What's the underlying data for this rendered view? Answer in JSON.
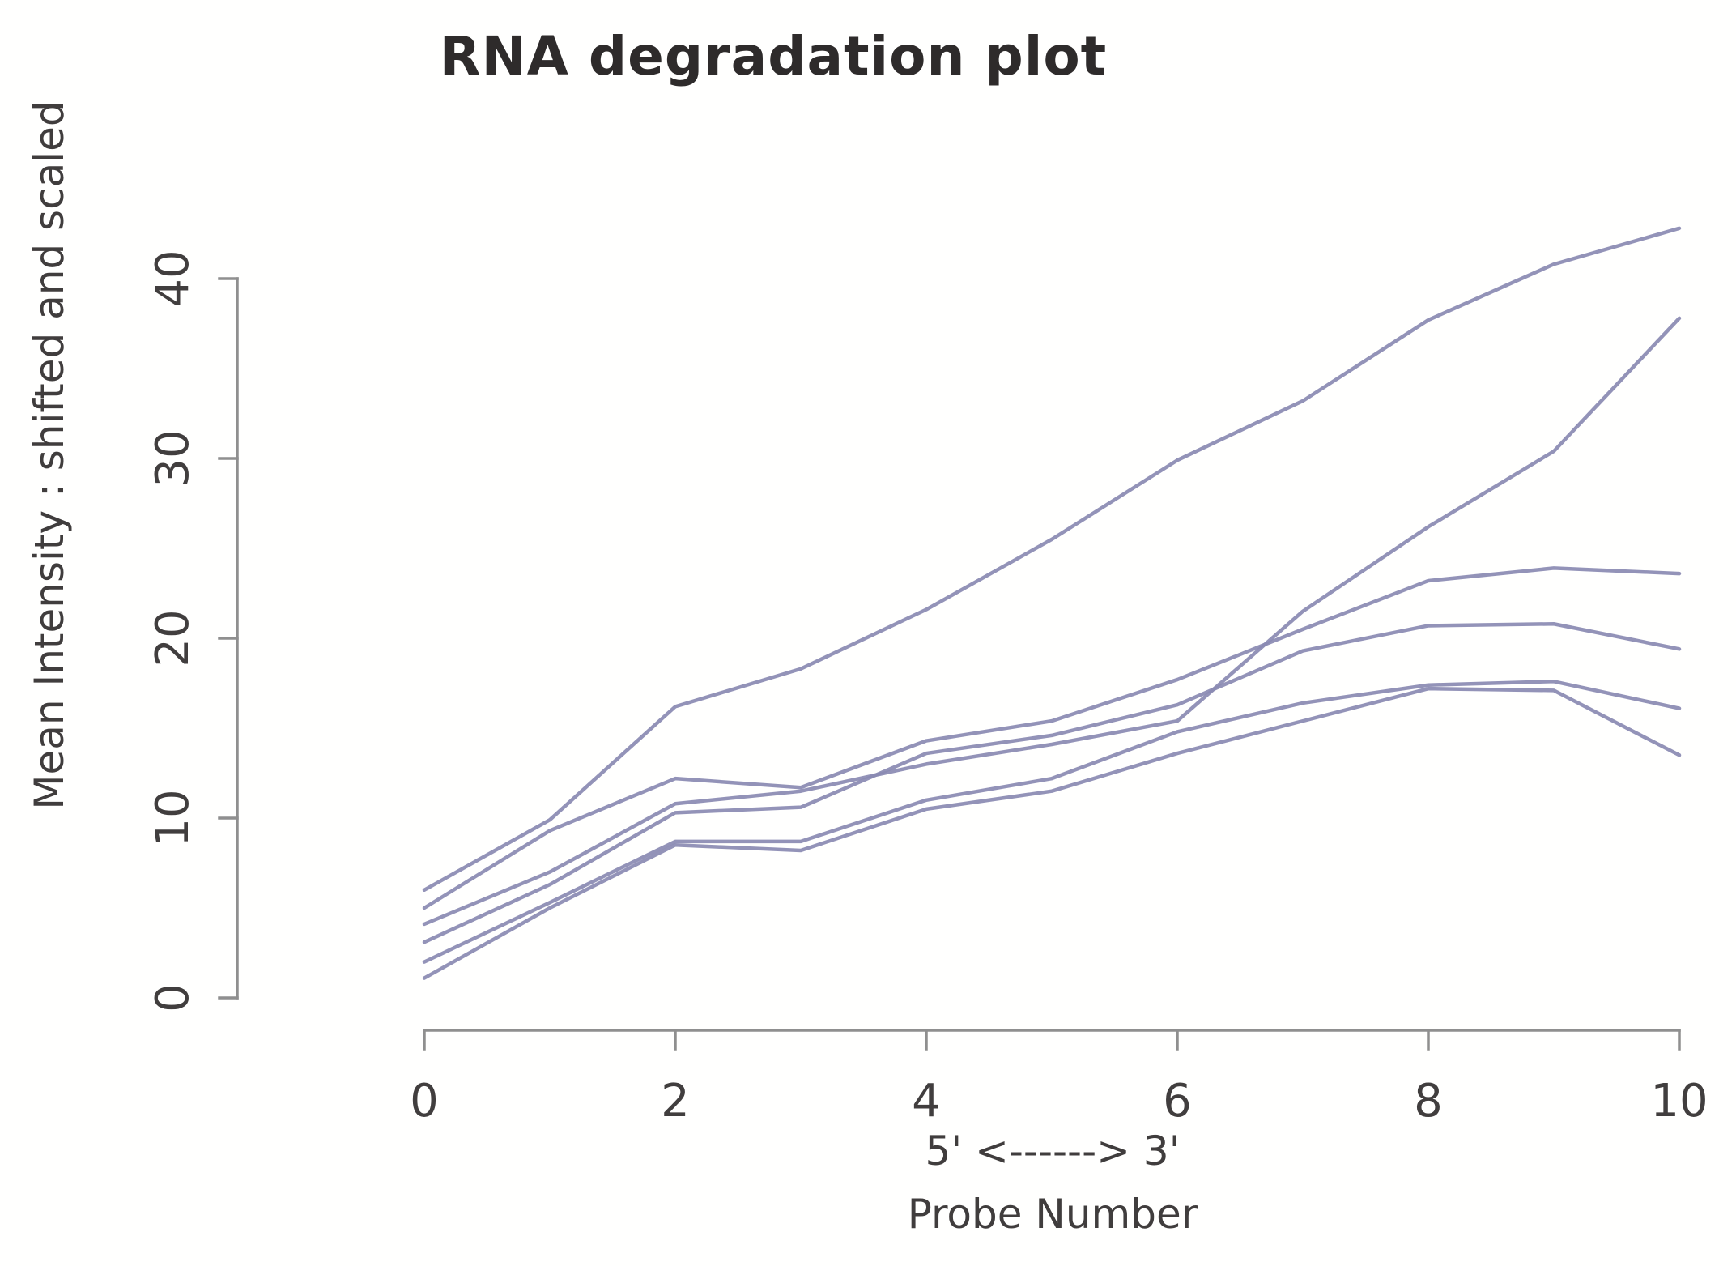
{
  "chart_data": {
    "type": "line",
    "title": "RNA degradation plot",
    "ylabel": "Mean Intensity : shifted and scaled",
    "xlabel_direction": "5' <------> 3'",
    "xlabel": "Probe Number",
    "xlim": [
      0,
      10
    ],
    "ylim": [
      0,
      40
    ],
    "x_ticks": [
      0,
      2,
      4,
      6,
      8,
      10
    ],
    "y_ticks": [
      0,
      10,
      20,
      30,
      40
    ],
    "grid": false,
    "legend": "none",
    "line_color": "#8a8ab2",
    "axis_color": "#8f8f8f",
    "x": [
      0,
      1,
      2,
      3,
      4,
      5,
      6,
      7,
      8,
      9,
      10
    ],
    "series": [
      {
        "values": [
          6.0,
          9.9,
          16.2,
          18.3,
          21.6,
          25.5,
          29.9,
          33.2,
          37.7,
          40.8,
          42.8
        ]
      },
      {
        "values": [
          4.1,
          7.0,
          10.8,
          11.5,
          13.0,
          14.1,
          15.4,
          21.5,
          26.2,
          30.4,
          37.8
        ]
      },
      {
        "values": [
          5.0,
          9.3,
          12.2,
          11.7,
          14.3,
          15.4,
          17.7,
          20.5,
          23.2,
          23.9,
          23.6
        ]
      },
      {
        "values": [
          3.1,
          6.3,
          10.3,
          10.6,
          13.6,
          14.6,
          16.3,
          19.3,
          20.7,
          20.8,
          19.4
        ]
      },
      {
        "values": [
          2.0,
          5.3,
          8.7,
          8.7,
          11.0,
          12.2,
          14.8,
          16.4,
          17.4,
          17.6,
          16.1
        ]
      },
      {
        "values": [
          1.1,
          5.0,
          8.5,
          8.2,
          10.5,
          11.5,
          13.6,
          15.4,
          17.2,
          17.1,
          13.5
        ]
      }
    ]
  }
}
